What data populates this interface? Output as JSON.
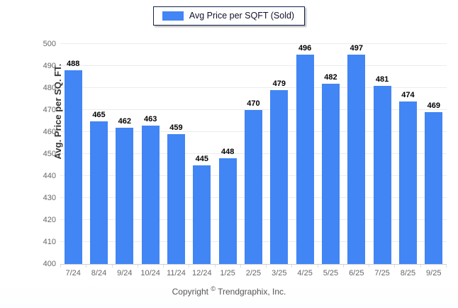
{
  "legend": {
    "label": "Avg Price per SQFT (Sold)"
  },
  "y_axis_title": "Avg. Price per SQ. FT.",
  "footer": {
    "copyright_prefix": "Copyright ",
    "copyright_symbol": "©",
    "copyright_suffix": " Trendgraphix, Inc."
  },
  "colors": {
    "bar": "#4285f4",
    "gridline": "#ececec",
    "axis_line": "#cfcfcf",
    "legend_border": "#15234f"
  },
  "chart_data": {
    "type": "bar",
    "title": "",
    "xlabel": "",
    "ylabel": "Avg. Price per SQ. FT.",
    "categories": [
      "7/24",
      "8/24",
      "9/24",
      "10/24",
      "11/24",
      "12/24",
      "1/25",
      "2/25",
      "3/25",
      "4/25",
      "5/25",
      "6/25",
      "7/25",
      "8/25",
      "9/25"
    ],
    "values": [
      488,
      465,
      462,
      463,
      459,
      445,
      448,
      470,
      479,
      496,
      482,
      497,
      481,
      474,
      469
    ],
    "ylim": [
      400,
      500
    ],
    "ytick_step": 10,
    "grid": true,
    "legend": [
      "Avg Price per SQFT (Sold)"
    ],
    "legend_position": "top-center",
    "bar_color": "#4285f4",
    "value_labels": true
  }
}
